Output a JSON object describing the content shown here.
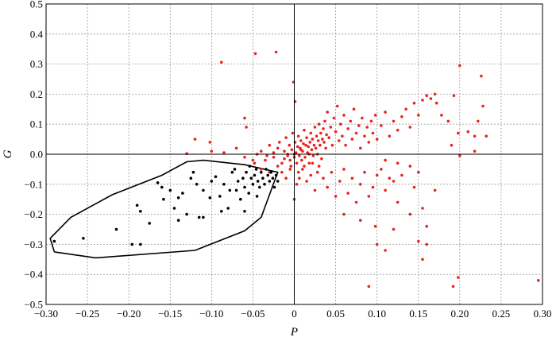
{
  "chart_data": {
    "type": "scatter",
    "title": "",
    "xlabel": "P",
    "ylabel": "G",
    "xlim": [
      -0.3,
      0.3
    ],
    "ylim": [
      -0.5,
      0.5
    ],
    "x_ticks": [
      "−0.30",
      "−0.25",
      "−0.20",
      "−0.15",
      "−0.10",
      "−0.05",
      "0",
      "0.05",
      "0.10",
      "0.15",
      "0.20",
      "0.25",
      "0.30"
    ],
    "y_ticks": [
      "0.5",
      "0.4",
      "0.3",
      "0.2",
      "0.1",
      "0.0",
      "−0.1",
      "−0.2",
      "−0.3",
      "−0.4",
      "−0.5"
    ],
    "grid": true,
    "zero_lines": true,
    "colors": {
      "red_series": "#e8241c",
      "black_series": "#000000",
      "envelope": "#000000"
    },
    "series": [
      {
        "color": "#e8241c",
        "points": [
          [
            -0.088,
            0.306
          ],
          [
            -0.047,
            0.335
          ],
          [
            -0.022,
            0.34
          ],
          [
            -0.001,
            0.24
          ],
          [
            0.001,
            0.175
          ],
          [
            -0.06,
            0.12
          ],
          [
            -0.058,
            0.09
          ],
          [
            -0.102,
            0.04
          ],
          [
            -0.12,
            0.05
          ],
          [
            -0.13,
            0.002
          ],
          [
            -0.1,
            0.01
          ],
          [
            -0.085,
            0.005
          ],
          [
            -0.07,
            0.02
          ],
          [
            -0.06,
            -0.01
          ],
          [
            -0.048,
            -0.03
          ],
          [
            -0.04,
            0.01
          ],
          [
            -0.035,
            -0.02
          ],
          [
            -0.03,
            0.03
          ],
          [
            -0.025,
            -0.01
          ],
          [
            -0.02,
            0.02
          ],
          [
            -0.018,
            0.04
          ],
          [
            -0.015,
            -0.03
          ],
          [
            -0.012,
            0.01
          ],
          [
            -0.01,
            0.055
          ],
          [
            -0.008,
            -0.005
          ],
          [
            -0.006,
            0.03
          ],
          [
            -0.005,
            -0.02
          ],
          [
            -0.003,
            0.015
          ],
          [
            -0.002,
            0.07
          ],
          [
            0.0,
            -0.01
          ],
          [
            0.001,
            0.04
          ],
          [
            0.002,
            0.005
          ],
          [
            0.003,
            -0.03
          ],
          [
            0.004,
            0.025
          ],
          [
            0.005,
            0.06
          ],
          [
            0.006,
            -0.005
          ],
          [
            0.007,
            0.02
          ],
          [
            0.008,
            0.045
          ],
          [
            0.009,
            -0.02
          ],
          [
            0.01,
            0.01
          ],
          [
            0.011,
            0.035
          ],
          [
            0.012,
            0.08
          ],
          [
            0.013,
            -0.01
          ],
          [
            0.014,
            0.03
          ],
          [
            0.015,
            0.055
          ],
          [
            0.016,
            0.005
          ],
          [
            0.017,
            0.025
          ],
          [
            0.018,
            -0.03
          ],
          [
            0.019,
            0.04
          ],
          [
            0.02,
            0.07
          ],
          [
            0.021,
            0.015
          ],
          [
            0.022,
            0.05
          ],
          [
            0.023,
            -0.005
          ],
          [
            0.024,
            0.03
          ],
          [
            0.025,
            0.09
          ],
          [
            0.026,
            0.02
          ],
          [
            0.027,
            0.06
          ],
          [
            0.028,
            0.0
          ],
          [
            0.029,
            0.045
          ],
          [
            0.03,
            0.1
          ],
          [
            0.031,
            0.03
          ],
          [
            0.032,
            0.07
          ],
          [
            0.033,
            -0.015
          ],
          [
            0.034,
            0.05
          ],
          [
            0.035,
            0.085
          ],
          [
            0.036,
            0.04
          ],
          [
            0.037,
            0.11
          ],
          [
            0.038,
            0.02
          ],
          [
            0.039,
            0.065
          ],
          [
            0.04,
            0.14
          ],
          [
            0.042,
            0.055
          ],
          [
            0.044,
            0.09
          ],
          [
            0.046,
            0.03
          ],
          [
            0.048,
            0.12
          ],
          [
            0.05,
            0.075
          ],
          [
            0.052,
            0.16
          ],
          [
            0.054,
            0.045
          ],
          [
            0.056,
            0.1
          ],
          [
            0.058,
            0.06
          ],
          [
            0.06,
            0.13
          ],
          [
            0.062,
            0.03
          ],
          [
            0.065,
            0.085
          ],
          [
            0.068,
            0.11
          ],
          [
            0.07,
            0.05
          ],
          [
            0.072,
            0.15
          ],
          [
            0.075,
            0.07
          ],
          [
            0.078,
            0.095
          ],
          [
            0.08,
            0.02
          ],
          [
            0.082,
            0.12
          ],
          [
            0.085,
            0.06
          ],
          [
            0.088,
            0.09
          ],
          [
            0.09,
            0.04
          ],
          [
            0.093,
            0.11
          ],
          [
            0.095,
            0.07
          ],
          [
            0.098,
            0.13
          ],
          [
            0.1,
            0.05
          ],
          [
            0.105,
            0.095
          ],
          [
            0.11,
            0.14
          ],
          [
            0.115,
            0.06
          ],
          [
            0.12,
            0.11
          ],
          [
            0.125,
            0.08
          ],
          [
            0.13,
            0.125
          ],
          [
            0.135,
            0.15
          ],
          [
            0.14,
            0.09
          ],
          [
            0.145,
            0.17
          ],
          [
            0.15,
            0.13
          ],
          [
            0.155,
            0.18
          ],
          [
            0.16,
            0.195
          ],
          [
            0.165,
            0.185
          ],
          [
            0.17,
            0.2
          ],
          [
            0.172,
            0.17
          ],
          [
            0.178,
            0.13
          ],
          [
            0.193,
            0.195
          ],
          [
            0.198,
            0.07
          ],
          [
            0.2,
            0.295
          ],
          [
            0.21,
            0.075
          ],
          [
            0.218,
            0.06
          ],
          [
            0.222,
            0.11
          ],
          [
            0.226,
            0.26
          ],
          [
            0.228,
            0.16
          ],
          [
            0.232,
            0.06
          ],
          [
            0.186,
            0.11
          ],
          [
            0.19,
            0.03
          ],
          [
            0.2,
            -0.005
          ],
          [
            0.218,
            0.01
          ],
          [
            0.0,
            -0.15
          ],
          [
            0.003,
            -0.1
          ],
          [
            0.006,
            -0.08
          ],
          [
            0.01,
            -0.05
          ],
          [
            0.015,
            -0.09
          ],
          [
            0.02,
            -0.07
          ],
          [
            0.025,
            -0.12
          ],
          [
            0.03,
            -0.04
          ],
          [
            0.035,
            -0.08
          ],
          [
            0.04,
            -0.11
          ],
          [
            0.045,
            -0.06
          ],
          [
            0.05,
            -0.14
          ],
          [
            0.055,
            -0.09
          ],
          [
            0.06,
            -0.05
          ],
          [
            0.065,
            -0.13
          ],
          [
            0.07,
            -0.08
          ],
          [
            0.075,
            -0.16
          ],
          [
            0.08,
            -0.1
          ],
          [
            0.085,
            -0.06
          ],
          [
            0.09,
            -0.14
          ],
          [
            0.095,
            -0.11
          ],
          [
            0.1,
            -0.07
          ],
          [
            0.105,
            -0.05
          ],
          [
            0.11,
            -0.12
          ],
          [
            0.115,
            -0.08
          ],
          [
            0.12,
            -0.09
          ],
          [
            0.125,
            -0.16
          ],
          [
            0.13,
            -0.07
          ],
          [
            0.14,
            -0.04
          ],
          [
            0.145,
            -0.11
          ],
          [
            0.15,
            -0.06
          ],
          [
            0.155,
            -0.18
          ],
          [
            0.16,
            -0.24
          ],
          [
            0.17,
            -0.12
          ],
          [
            0.06,
            -0.2
          ],
          [
            0.08,
            -0.22
          ],
          [
            0.098,
            -0.24
          ],
          [
            0.12,
            -0.25
          ],
          [
            0.1,
            -0.3
          ],
          [
            0.11,
            -0.32
          ],
          [
            0.15,
            -0.29
          ],
          [
            0.16,
            -0.3
          ],
          [
            0.09,
            -0.44
          ],
          [
            0.192,
            -0.44
          ],
          [
            0.198,
            -0.41
          ],
          [
            0.295,
            -0.42
          ],
          [
            0.155,
            -0.35
          ],
          [
            0.14,
            -0.2
          ],
          [
            0.125,
            -0.03
          ],
          [
            0.11,
            -0.02
          ],
          [
            -0.01,
            -0.08
          ],
          [
            -0.015,
            -0.06
          ],
          [
            -0.005,
            -0.05
          ],
          [
            0.005,
            -0.06
          ],
          [
            -0.02,
            -0.04
          ],
          [
            -0.03,
            -0.06
          ],
          [
            -0.04,
            -0.05
          ],
          [
            -0.008,
            0.0
          ],
          [
            -0.004,
            -0.04
          ],
          [
            0.012,
            -0.04
          ],
          [
            0.022,
            -0.03
          ],
          [
            0.028,
            -0.06
          ],
          [
            0.018,
            0.0
          ],
          [
            0.008,
            0.015
          ],
          [
            -0.012,
            -0.015
          ],
          [
            -0.025,
            0.005
          ],
          [
            -0.033,
            -0.005
          ],
          [
            -0.045,
            0.0
          ],
          [
            -0.05,
            -0.02
          ],
          [
            0.0,
            0.0
          ]
        ]
      },
      {
        "color": "#000000",
        "points": [
          [
            -0.29,
            -0.29
          ],
          [
            -0.255,
            -0.28
          ],
          [
            -0.215,
            -0.25
          ],
          [
            -0.196,
            -0.3
          ],
          [
            -0.186,
            -0.3
          ],
          [
            -0.19,
            -0.17
          ],
          [
            -0.186,
            -0.19
          ],
          [
            -0.165,
            -0.095
          ],
          [
            -0.16,
            -0.11
          ],
          [
            -0.158,
            -0.15
          ],
          [
            -0.15,
            -0.12
          ],
          [
            -0.14,
            -0.145
          ],
          [
            -0.135,
            -0.13
          ],
          [
            -0.13,
            -0.2
          ],
          [
            -0.125,
            -0.08
          ],
          [
            -0.122,
            -0.06
          ],
          [
            -0.118,
            -0.1
          ],
          [
            -0.115,
            -0.21
          ],
          [
            -0.11,
            -0.21
          ],
          [
            -0.1,
            -0.09
          ],
          [
            -0.095,
            -0.075
          ],
          [
            -0.09,
            -0.14
          ],
          [
            -0.085,
            -0.1
          ],
          [
            -0.08,
            -0.18
          ],
          [
            -0.078,
            -0.12
          ],
          [
            -0.075,
            -0.06
          ],
          [
            -0.07,
            -0.12
          ],
          [
            -0.068,
            -0.09
          ],
          [
            -0.065,
            -0.15
          ],
          [
            -0.062,
            -0.08
          ],
          [
            -0.06,
            -0.11
          ],
          [
            -0.058,
            -0.06
          ],
          [
            -0.055,
            -0.13
          ],
          [
            -0.052,
            -0.08
          ],
          [
            -0.05,
            -0.1
          ],
          [
            -0.048,
            -0.07
          ],
          [
            -0.046,
            -0.05
          ],
          [
            -0.044,
            -0.09
          ],
          [
            -0.042,
            -0.11
          ],
          [
            -0.04,
            -0.06
          ],
          [
            -0.038,
            -0.08
          ],
          [
            -0.036,
            -0.1
          ],
          [
            -0.034,
            -0.05
          ],
          [
            -0.032,
            -0.07
          ],
          [
            -0.03,
            -0.09
          ],
          [
            -0.028,
            -0.06
          ],
          [
            -0.026,
            -0.08
          ],
          [
            -0.024,
            -0.11
          ],
          [
            -0.022,
            -0.07
          ],
          [
            -0.02,
            -0.09
          ],
          [
            -0.045,
            -0.14
          ],
          [
            -0.06,
            -0.19
          ],
          [
            -0.088,
            -0.19
          ],
          [
            -0.14,
            -0.22
          ],
          [
            -0.102,
            -0.145
          ],
          [
            -0.145,
            -0.18
          ],
          [
            -0.175,
            -0.23
          ],
          [
            -0.11,
            -0.12
          ],
          [
            -0.072,
            -0.05
          ],
          [
            -0.054,
            -0.04
          ]
        ]
      }
    ],
    "envelope": [
      [
        -0.29,
        -0.325
      ],
      [
        -0.24,
        -0.345
      ],
      [
        -0.12,
        -0.32
      ],
      [
        -0.06,
        -0.255
      ],
      [
        -0.04,
        -0.21
      ],
      [
        -0.02,
        -0.06
      ],
      [
        -0.06,
        -0.035
      ],
      [
        -0.11,
        -0.02
      ],
      [
        -0.13,
        -0.025
      ],
      [
        -0.16,
        -0.07
      ],
      [
        -0.22,
        -0.135
      ],
      [
        -0.27,
        -0.21
      ],
      [
        -0.295,
        -0.28
      ],
      [
        -0.29,
        -0.325
      ]
    ]
  }
}
